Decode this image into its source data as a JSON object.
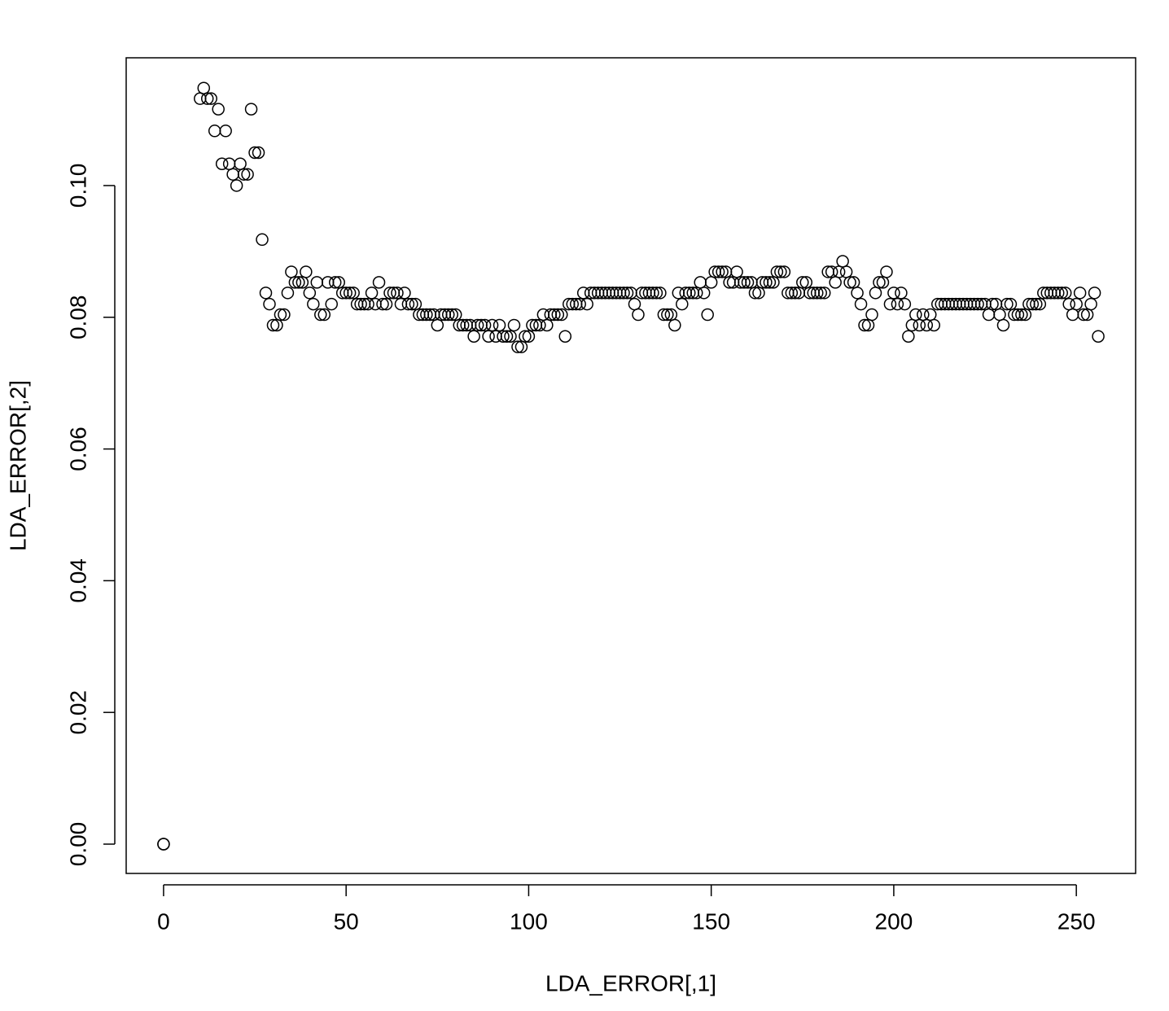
{
  "chart_data": {
    "type": "scatter",
    "x_label": "LDA_ERROR[,1]",
    "y_label": "LDA_ERROR[,2]",
    "xlim": [
      -10.24,
      266.24
    ],
    "ylim": [
      -0.00445,
      0.1194
    ],
    "xticks": [
      0,
      50,
      100,
      150,
      200,
      250
    ],
    "yticks": [
      {
        "value": 0,
        "label": "0.00"
      },
      {
        "value": 0.02,
        "label": "0.02"
      },
      {
        "value": 0.04,
        "label": "0.04"
      },
      {
        "value": 0.06,
        "label": "0.06"
      },
      {
        "value": 0.08,
        "label": "0.08"
      },
      {
        "value": 0.1,
        "label": "0.10"
      }
    ],
    "color": "#000000",
    "grid": false,
    "x": [
      0,
      0,
      10,
      11,
      12,
      13,
      14,
      15,
      16,
      17,
      18,
      19,
      20,
      21,
      22,
      23,
      24,
      25,
      26,
      27,
      28,
      29,
      30,
      31,
      32,
      33,
      34,
      35,
      36,
      37,
      38,
      39,
      40,
      41,
      42,
      43,
      44,
      45,
      46,
      47,
      48,
      49,
      50,
      51,
      52,
      53,
      54,
      55,
      56,
      57,
      58,
      59,
      60,
      61,
      62,
      63,
      64,
      65,
      66,
      67,
      68,
      69,
      70,
      71,
      72,
      73,
      74,
      75,
      76,
      77,
      78,
      79,
      80,
      81,
      82,
      83,
      84,
      85,
      86,
      87,
      88,
      89,
      90,
      91,
      92,
      93,
      94,
      95,
      96,
      97,
      98,
      99,
      100,
      101,
      102,
      103,
      104,
      105,
      106,
      107,
      108,
      109,
      110,
      111,
      112,
      113,
      114,
      115,
      116,
      117,
      118,
      119,
      120,
      121,
      122,
      123,
      124,
      125,
      126,
      127,
      128,
      129,
      130,
      131,
      132,
      133,
      134,
      135,
      136,
      137,
      138,
      139,
      140,
      141,
      142,
      143,
      144,
      145,
      146,
      147,
      148,
      149,
      150,
      151,
      152,
      153,
      154,
      155,
      156,
      157,
      158,
      159,
      160,
      161,
      162,
      163,
      164,
      165,
      166,
      167,
      168,
      169,
      170,
      171,
      172,
      173,
      174,
      175,
      176,
      177,
      178,
      179,
      180,
      181,
      182,
      183,
      184,
      185,
      186,
      187,
      188,
      189,
      190,
      191,
      192,
      193,
      194,
      195,
      196,
      197,
      198,
      199,
      200,
      201,
      202,
      203,
      204,
      205,
      206,
      207,
      208,
      209,
      210,
      211,
      212,
      213,
      214,
      215,
      216,
      217,
      218,
      219,
      220,
      221,
      222,
      223,
      224,
      225,
      226,
      227,
      228,
      229,
      230,
      231,
      232,
      233,
      234,
      235,
      236,
      237,
      238,
      239,
      240,
      241,
      242,
      243,
      244,
      245,
      246,
      247,
      248,
      249,
      250,
      251,
      252,
      253,
      254,
      255,
      256
    ],
    "values": [
      0,
      0,
      0.1132,
      0.1148,
      0.1132,
      0.1132,
      0.1083,
      0.1116,
      0.1033,
      0.1083,
      0.1033,
      0.1017,
      0.1,
      0.1033,
      0.1017,
      0.1017,
      0.1116,
      0.105,
      0.105,
      0.0918,
      0.0837,
      0.082,
      0.0788,
      0.0788,
      0.0804,
      0.0804,
      0.0837,
      0.0869,
      0.0853,
      0.0853,
      0.0853,
      0.0869,
      0.0837,
      0.082,
      0.0853,
      0.0804,
      0.0804,
      0.0853,
      0.082,
      0.0853,
      0.0853,
      0.0837,
      0.0837,
      0.0837,
      0.0837,
      0.082,
      0.082,
      0.082,
      0.082,
      0.0837,
      0.082,
      0.0853,
      0.082,
      0.082,
      0.0837,
      0.0837,
      0.0837,
      0.082,
      0.0837,
      0.082,
      0.082,
      0.082,
      0.0804,
      0.0804,
      0.0804,
      0.0804,
      0.0804,
      0.0788,
      0.0804,
      0.0804,
      0.0804,
      0.0804,
      0.0804,
      0.0788,
      0.0788,
      0.0788,
      0.0788,
      0.0771,
      0.0788,
      0.0788,
      0.0788,
      0.0771,
      0.0788,
      0.0771,
      0.0788,
      0.0771,
      0.0771,
      0.0771,
      0.0788,
      0.0755,
      0.0755,
      0.0771,
      0.0771,
      0.0788,
      0.0788,
      0.0788,
      0.0804,
      0.0788,
      0.0804,
      0.0804,
      0.0804,
      0.0804,
      0.0771,
      0.082,
      0.082,
      0.082,
      0.082,
      0.0837,
      0.082,
      0.0837,
      0.0837,
      0.0837,
      0.0837,
      0.0837,
      0.0837,
      0.0837,
      0.0837,
      0.0837,
      0.0837,
      0.0837,
      0.0837,
      0.082,
      0.0804,
      0.0837,
      0.0837,
      0.0837,
      0.0837,
      0.0837,
      0.0837,
      0.0804,
      0.0804,
      0.0804,
      0.0788,
      0.0837,
      0.082,
      0.0837,
      0.0837,
      0.0837,
      0.0837,
      0.0853,
      0.0837,
      0.0804,
      0.0853,
      0.0869,
      0.0869,
      0.0869,
      0.0869,
      0.0853,
      0.0853,
      0.0869,
      0.0853,
      0.0853,
      0.0853,
      0.0853,
      0.0837,
      0.0837,
      0.0853,
      0.0853,
      0.0853,
      0.0853,
      0.0869,
      0.0869,
      0.0869,
      0.0837,
      0.0837,
      0.0837,
      0.0837,
      0.0853,
      0.0853,
      0.0837,
      0.0837,
      0.0837,
      0.0837,
      0.0837,
      0.0869,
      0.0869,
      0.0853,
      0.0869,
      0.0885,
      0.0869,
      0.0853,
      0.0853,
      0.0837,
      0.082,
      0.0788,
      0.0788,
      0.0804,
      0.0837,
      0.0853,
      0.0853,
      0.0869,
      0.082,
      0.0837,
      0.082,
      0.0837,
      0.082,
      0.0771,
      0.0788,
      0.0804,
      0.0788,
      0.0804,
      0.0788,
      0.0804,
      0.0788,
      0.082,
      0.082,
      0.082,
      0.082,
      0.082,
      0.082,
      0.082,
      0.082,
      0.082,
      0.082,
      0.082,
      0.082,
      0.082,
      0.082,
      0.0804,
      0.082,
      0.082,
      0.0804,
      0.0788,
      0.082,
      0.082,
      0.0804,
      0.0804,
      0.0804,
      0.0804,
      0.082,
      0.082,
      0.082,
      0.082,
      0.0837,
      0.0837,
      0.0837,
      0.0837,
      0.0837,
      0.0837,
      0.0837,
      0.082,
      0.0804,
      0.082,
      0.0837,
      0.0804,
      0.0804,
      0.082,
      0.0837,
      0.0771
    ]
  }
}
